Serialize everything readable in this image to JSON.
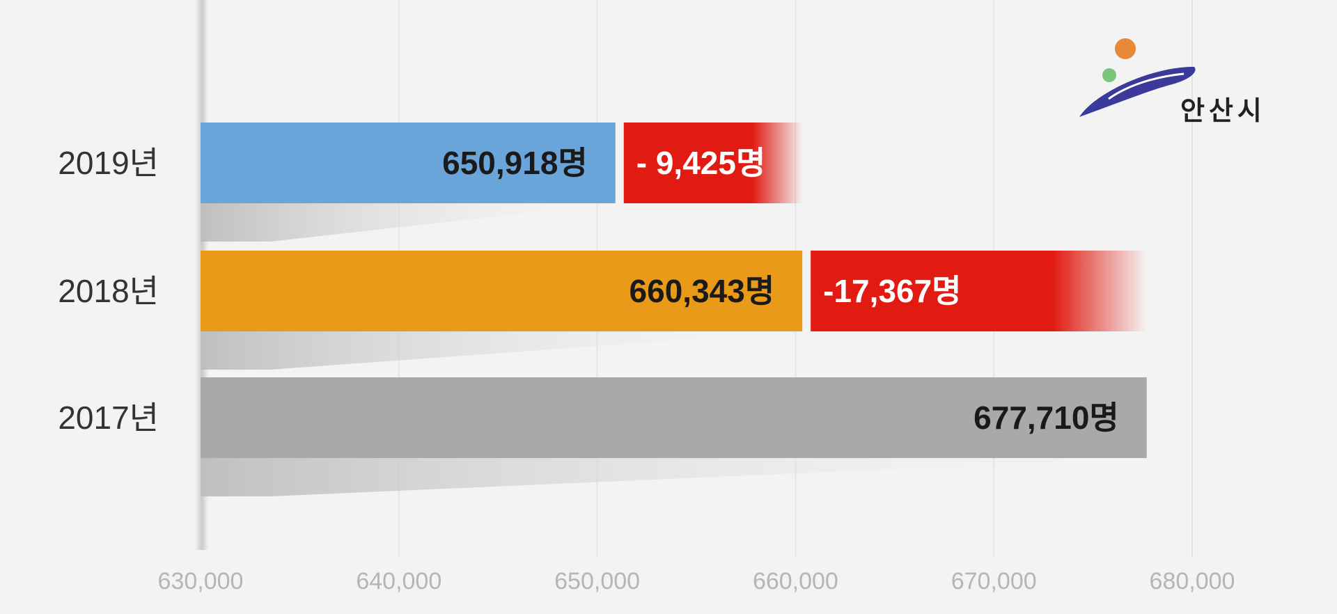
{
  "logo": {
    "text": "안산시",
    "colors": {
      "orb": "#e8893a",
      "dot": "#7cc47a",
      "swoosh": "#3a3a9a"
    }
  },
  "chart_data": {
    "type": "bar",
    "orientation": "horizontal",
    "categories": [
      "2019년",
      "2018년",
      "2017년"
    ],
    "values": [
      650918,
      660343,
      677710
    ],
    "value_labels": [
      "650,918명",
      "660,343명",
      "677,710명"
    ],
    "changes": [
      {
        "category": "2019년",
        "value": -9425,
        "label": "- 9,425명"
      },
      {
        "category": "2018년",
        "value": -17367,
        "label": "-17,367명"
      }
    ],
    "xlim": [
      630000,
      680000
    ],
    "xticks": [
      630000,
      640000,
      650000,
      660000,
      670000,
      680000
    ],
    "xtick_labels": [
      "630,000",
      "640,000",
      "650,000",
      "660,000",
      "670,000",
      "680,000"
    ],
    "grid": true,
    "colors": {
      "2019년": "#6aa5d9",
      "2018년": "#e99a18",
      "2017년": "#a9a9a9",
      "change": "#e11b12"
    }
  }
}
